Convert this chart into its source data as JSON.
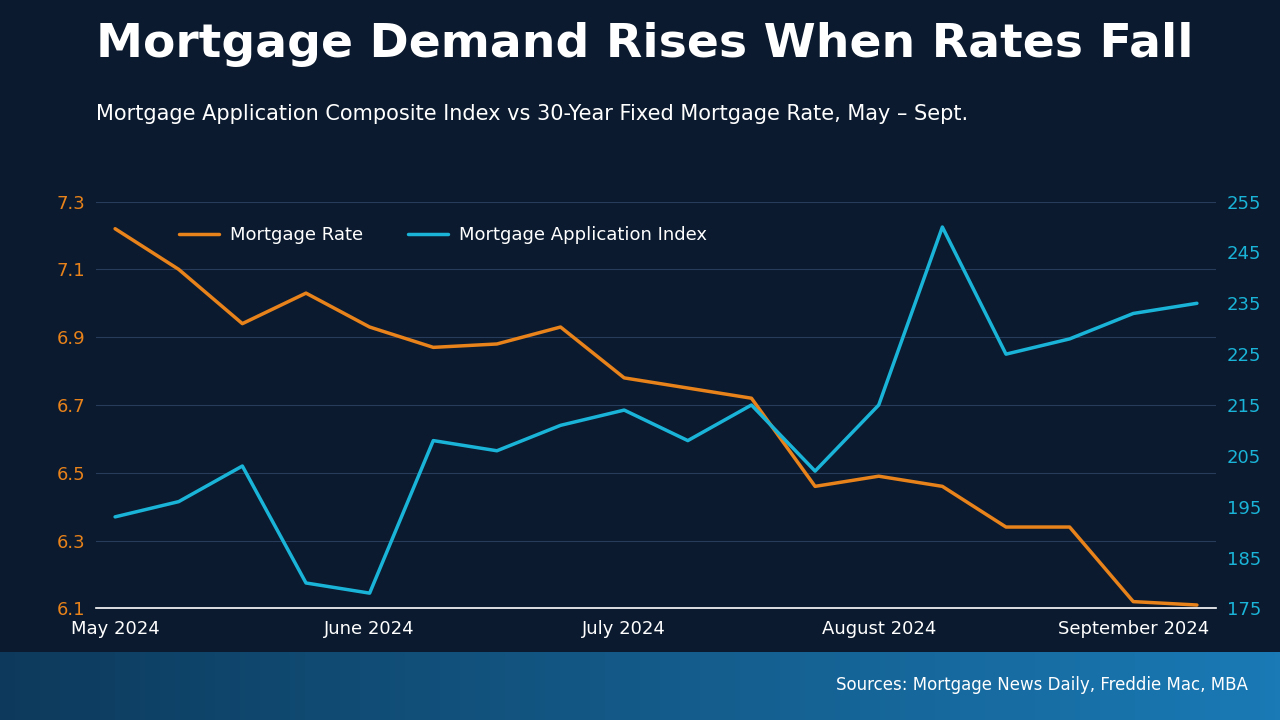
{
  "title": "Mortgage Demand Rises When Rates Fall",
  "subtitle": "Mortgage Application Composite Index vs 30-Year Fixed Mortgage Rate, May – Sept.",
  "source": "Sources: Mortgage News Daily, Freddie Mac, MBA",
  "background_color": "#0b1a2e",
  "plot_bg_color": "#0b1a2e",
  "title_color": "#ffffff",
  "subtitle_color": "#ffffff",
  "source_color": "#ffffff",
  "left_axis_color": "#e8821a",
  "right_axis_color": "#1ab4d8",
  "grid_color": "#2a4060",
  "mortgage_rate_color": "#e8821a",
  "app_index_color": "#1ab4d8",
  "x_labels": [
    "May 2024",
    "June 2024",
    "July 2024",
    "August 2024",
    "September 2024"
  ],
  "x_positions": [
    0,
    4,
    8,
    12,
    16
  ],
  "mortgage_rate_x": [
    0,
    1,
    2,
    3,
    4,
    5,
    6,
    7,
    8,
    9,
    10,
    11,
    12,
    13,
    14,
    15,
    16,
    17
  ],
  "mortgage_rate_y": [
    7.22,
    7.1,
    6.94,
    7.03,
    6.93,
    6.87,
    6.88,
    6.93,
    6.78,
    6.75,
    6.72,
    6.46,
    6.49,
    6.46,
    6.34,
    6.34,
    6.12,
    6.11
  ],
  "app_index_x": [
    0,
    1,
    2,
    3,
    4,
    5,
    6,
    7,
    8,
    9,
    10,
    11,
    12,
    13,
    14,
    15,
    16,
    17
  ],
  "app_index_y": [
    193,
    196,
    203,
    180,
    178,
    208,
    206,
    211,
    214,
    208,
    215,
    202,
    215,
    250,
    225,
    228,
    233,
    235
  ],
  "left_ylim": [
    6.1,
    7.3
  ],
  "left_yticks": [
    6.1,
    6.3,
    6.5,
    6.7,
    6.9,
    7.1,
    7.3
  ],
  "right_ylim": [
    175,
    255
  ],
  "right_yticks": [
    175,
    185,
    195,
    205,
    215,
    225,
    235,
    245,
    255
  ],
  "legend_mortgage_rate": "Mortgage Rate",
  "legend_app_index": "Mortgage Application Index",
  "line_width": 2.5,
  "title_fontsize": 34,
  "subtitle_fontsize": 15,
  "source_fontsize": 12,
  "tick_fontsize": 13,
  "legend_fontsize": 13,
  "xlabel_fontsize": 13,
  "footer_color_left": "#0d3a5c",
  "footer_color_right": "#1a7ab5"
}
